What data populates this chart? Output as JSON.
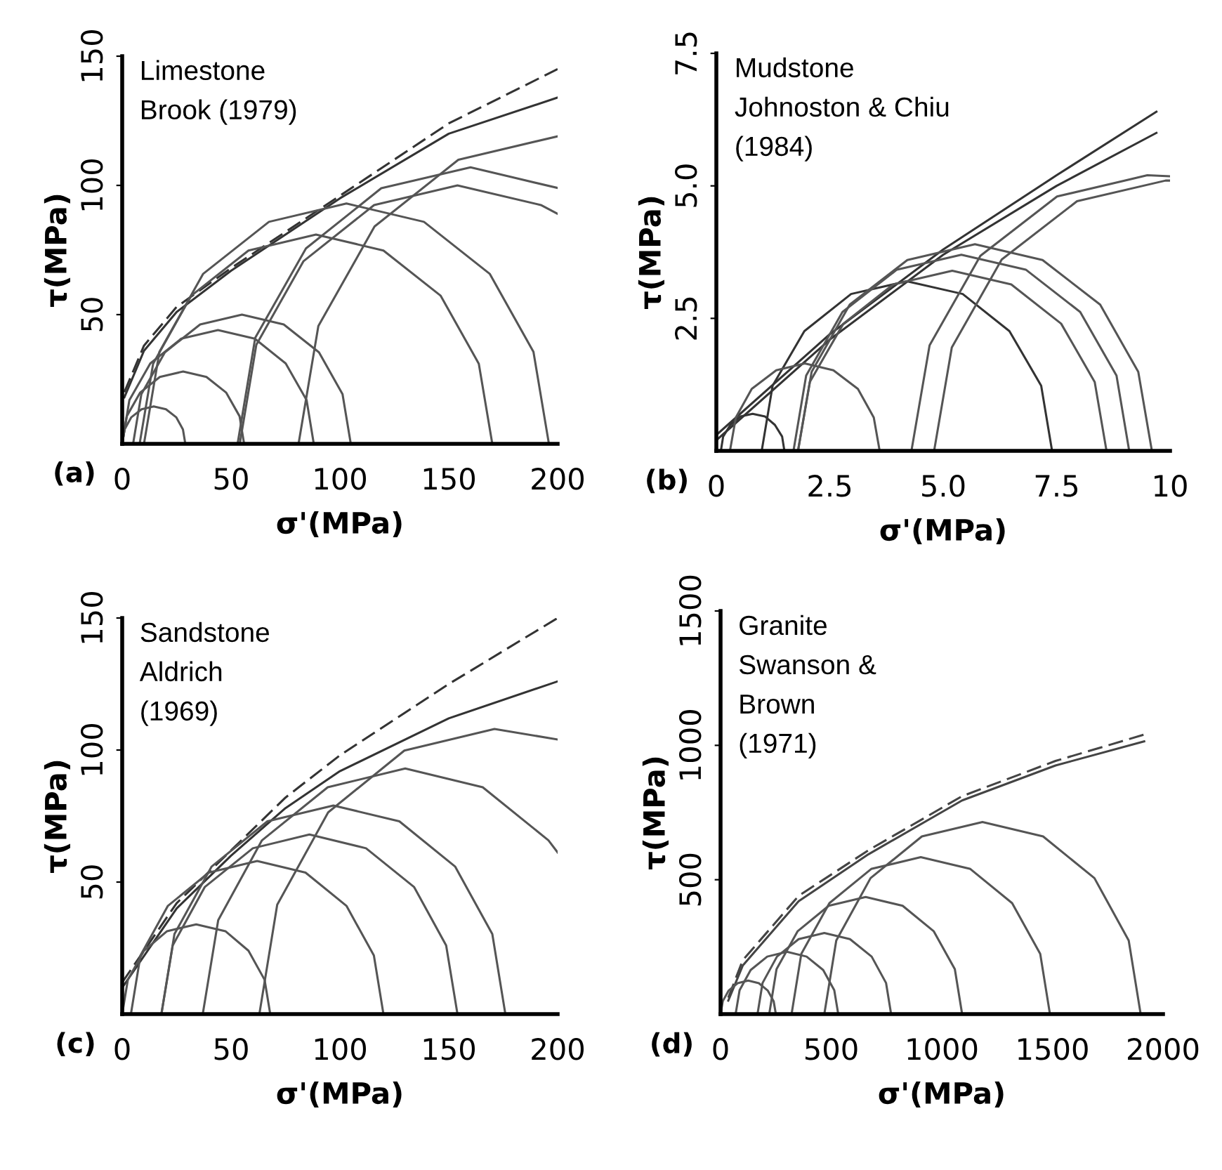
{
  "chart_data": [
    {
      "type": "line",
      "xlabel": "σ'(MPa)",
      "ylabel": "τ(MPa)",
      "annotations": [
        "Limestone\nBrook (1979)",
        "(a)"
      ],
      "xlim": [
        0,
        200
      ],
      "ylim": [
        0,
        150
      ],
      "xticks": [
        0,
        50,
        100,
        150,
        200
      ],
      "yticks": [
        50,
        100,
        150
      ],
      "series": [
        {
          "color": "#333333",
          "line_style": "dashed",
          "x": [
            1,
            10,
            25,
            50,
            100,
            150,
            200
          ],
          "values": [
            20,
            38,
            53,
            68,
            96,
            124,
            145
          ]
        },
        {
          "color": "#333333",
          "line_style": "solid",
          "x": [
            1,
            10,
            25,
            50,
            100,
            150,
            200
          ],
          "values": [
            18,
            36,
            51,
            67,
            95,
            120,
            134
          ]
        },
        {
          "color": "#555555",
          "x": [
            0,
            1.1,
            4.2,
            8.9,
            14.5,
            20.1,
            24.8,
            27.9,
            29
          ],
          "values": [
            0,
            5.6,
            10.3,
            13.4,
            14.5,
            13.4,
            10.3,
            5.6,
            0
          ]
        },
        {
          "color": "#555555",
          "x": [
            0,
            2.1,
            8.2,
            17.3,
            28,
            38.7,
            47.8,
            53.9,
            56
          ],
          "values": [
            0,
            10.7,
            19.8,
            25.9,
            28,
            25.9,
            19.8,
            10.7,
            0
          ]
        },
        {
          "color": "#555555",
          "x": [
            0,
            3.3,
            12.9,
            27.1,
            44,
            60.9,
            75.1,
            84.7,
            88
          ],
          "values": [
            0,
            16.9,
            31.1,
            40.7,
            44,
            40.7,
            31.1,
            16.9,
            0
          ]
        },
        {
          "color": "#555555",
          "x": [
            5,
            8.8,
            19.6,
            35.8,
            55,
            74.2,
            90.4,
            101.2,
            105
          ],
          "values": [
            0,
            19.2,
            35.4,
            46.2,
            50,
            46.2,
            35.4,
            19.2,
            0
          ]
        },
        {
          "color": "#555555",
          "x": [
            8,
            14.2,
            31.7,
            58,
            89,
            120,
            146.3,
            163.8,
            170
          ],
          "values": [
            0,
            31,
            57.3,
            74.8,
            81,
            74.8,
            57.3,
            31,
            0
          ]
        },
        {
          "color": "#555555",
          "x": [
            10,
            17.1,
            37.2,
            67.4,
            103,
            138.6,
            168.8,
            188.9,
            196
          ],
          "values": [
            0,
            35.6,
            65.8,
            85.9,
            93,
            85.9,
            65.8,
            35.6,
            0
          ]
        },
        {
          "color": "#555555",
          "x": [
            54,
            61.6,
            83.3,
            115.7,
            154,
            192.3,
            200
          ],
          "values": [
            0,
            38.3,
            70.7,
            92.4,
            100,
            92.4,
            89
          ]
        },
        {
          "color": "#555555",
          "x": [
            53,
            61.1,
            84.4,
            119,
            160,
            200
          ],
          "values": [
            0,
            41,
            75.6,
            98.9,
            107,
            99
          ]
        },
        {
          "color": "#555555",
          "x": [
            81,
            90.1,
            115.9,
            154.4,
            200
          ],
          "values": [
            0,
            45.6,
            84.1,
            109.9,
            119
          ]
        }
      ]
    },
    {
      "type": "line",
      "xlabel": "σ'(MPa)",
      "ylabel": "τ(MPa)",
      "annotations": [
        "Mudstone\nJohnoston & Chiu\n(1984)",
        "(b)"
      ],
      "xlim": [
        0,
        10
      ],
      "ylim": [
        0,
        7.5
      ],
      "xticks": [
        0,
        2.5,
        {
          "value": 5,
          "label": "5.0"
        },
        7.5,
        10
      ],
      "yticks": [
        2.5,
        {
          "value": 5,
          "label": "5.0"
        },
        7.5
      ],
      "series": [
        {
          "color": "#333333",
          "line_style": "solid",
          "x": [
            0,
            2.5,
            5,
            7.5,
            9.7
          ],
          "values": [
            0.3,
            2.2,
            3.8,
            5.2,
            6.4
          ]
        },
        {
          "color": "#333333",
          "line_style": "solid",
          "x": [
            0,
            2.5,
            5,
            7.5,
            9.7
          ],
          "values": [
            0.2,
            2.1,
            3.7,
            5.0,
            6.0
          ]
        },
        {
          "color": "#333333",
          "x": [
            1.0,
            1.24,
            1.94,
            2.97,
            4.2,
            5.43,
            6.46,
            7.16,
            7.4
          ],
          "values": [
            0,
            1.23,
            2.26,
            2.96,
            3.2,
            2.96,
            2.26,
            1.23,
            0
          ]
        },
        {
          "color": "#333333",
          "x": [
            0.1,
            0.15,
            0.31,
            0.53,
            0.8,
            1.07,
            1.29,
            1.45,
            1.5
          ],
          "values": [
            0,
            0.27,
            0.49,
            0.65,
            0.7,
            0.65,
            0.49,
            0.27,
            0
          ]
        },
        {
          "color": "#555555",
          "x": [
            0.3,
            0.43,
            0.78,
            1.32,
            1.95,
            2.58,
            3.12,
            3.47,
            3.6
          ],
          "values": [
            0,
            0.63,
            1.17,
            1.52,
            1.65,
            1.52,
            1.17,
            0.63,
            0
          ]
        },
        {
          "color": "#555555",
          "x": [
            1.8,
            2.1,
            2.94,
            4.21,
            5.7,
            7.19,
            8.46,
            9.3,
            9.6
          ],
          "values": [
            0,
            1.49,
            2.76,
            3.6,
            3.9,
            3.6,
            2.76,
            1.49,
            0
          ]
        },
        {
          "color": "#555555",
          "x": [
            1.7,
            1.98,
            2.78,
            3.98,
            5.4,
            6.82,
            8.02,
            8.82,
            9.1
          ],
          "values": [
            0,
            1.42,
            2.62,
            3.42,
            3.7,
            3.42,
            2.62,
            1.42,
            0
          ]
        },
        {
          "color": "#555555",
          "x": [
            1.8,
            2.06,
            2.8,
            3.9,
            5.2,
            6.5,
            7.6,
            8.34,
            8.6
          ],
          "values": [
            0,
            1.3,
            2.4,
            3.14,
            3.4,
            3.14,
            2.4,
            1.3,
            0
          ]
        },
        {
          "color": "#555555",
          "x": [
            4.8,
            5.19,
            6.29,
            7.95,
            9.9,
            10
          ],
          "values": [
            0,
            1.95,
            3.61,
            4.71,
            5.1,
            5.1
          ]
        },
        {
          "color": "#555555",
          "x": [
            4.3,
            4.7,
            5.82,
            7.51,
            9.5,
            10
          ],
          "values": [
            0,
            1.99,
            3.68,
            4.8,
            5.2,
            5.18
          ]
        }
      ]
    },
    {
      "type": "line",
      "xlabel": "σ'(MPa)",
      "ylabel": "τ(MPa)",
      "annotations": [
        "Sandstone\nAldrich\n(1969)",
        "(c)"
      ],
      "xlim": [
        0,
        200
      ],
      "ylim": [
        0,
        150
      ],
      "xticks": [
        0,
        50,
        100,
        150,
        200
      ],
      "yticks": [
        50,
        100,
        150
      ],
      "series": [
        {
          "color": "#333333",
          "line_style": "dashed",
          "x": [
            0,
            25,
            50,
            75,
            100,
            150,
            200
          ],
          "values": [
            12,
            42,
            62,
            82,
            98,
            125,
            150
          ]
        },
        {
          "color": "#333333",
          "line_style": "solid",
          "x": [
            0,
            25,
            50,
            75,
            100,
            150,
            200
          ],
          "values": [
            10,
            40,
            60,
            78,
            92,
            112,
            126
          ]
        },
        {
          "color": "#555555",
          "x": [
            0,
            2.6,
            10,
            20.6,
            34,
            47.4,
            58,
            65.4,
            68
          ],
          "values": [
            0,
            13,
            24,
            31.4,
            34,
            31.4,
            24,
            13,
            0
          ]
        },
        {
          "color": "#555555",
          "x": [
            4,
            8.4,
            21,
            39.8,
            62,
            84.2,
            103,
            115.6,
            120
          ],
          "values": [
            0,
            22.2,
            41,
            53.6,
            58,
            53.6,
            41,
            22.2,
            0
          ]
        },
        {
          "color": "#555555",
          "x": [
            18,
            23.2,
            37.9,
            60,
            86,
            112,
            134.1,
            148.8,
            154
          ],
          "values": [
            0,
            26,
            48.1,
            62.8,
            68,
            62.8,
            48.1,
            26,
            0
          ]
        },
        {
          "color": "#555555",
          "x": [
            18,
            24,
            41.1,
            66.7,
            97,
            127.3,
            152.9,
            170,
            176
          ],
          "values": [
            0,
            30.3,
            55.9,
            73,
            79,
            73,
            55.9,
            30.3,
            0
          ]
        },
        {
          "color": "#555555",
          "x": [
            37,
            44.1,
            64.2,
            94.4,
            130,
            165.6,
            195.8,
            200
          ],
          "values": [
            0,
            35.6,
            65.8,
            85.9,
            93,
            85.9,
            65.8,
            61.2
          ]
        },
        {
          "color": "#555555",
          "x": [
            63,
            71.2,
            94.6,
            129.6,
            171,
            200
          ],
          "values": [
            0,
            41.4,
            76.4,
            99.8,
            108,
            104
          ]
        }
      ]
    },
    {
      "type": "line",
      "xlabel": "σ'(MPa)",
      "ylabel": "τ(MPa)",
      "annotations": [
        "Granite\nSwanson &\nBrown\n(1971)",
        "(d)"
      ],
      "xlim": [
        0,
        2000
      ],
      "ylim": [
        0,
        1500
      ],
      "xticks": [
        0,
        500,
        1000,
        1500,
        2000
      ],
      "yticks": [
        500,
        1000,
        1500
      ],
      "series": [
        {
          "color": "#444444",
          "line_style": "dashed",
          "x": [
            35,
            100,
            353,
            669,
            1092,
            1514,
            1915
          ],
          "values": [
            61,
            200,
            440,
            610,
            811,
            942,
            1040
          ]
        },
        {
          "color": "#444444",
          "line_style": "solid",
          "x": [
            35,
            100,
            353,
            669,
            1092,
            1514,
            1915
          ],
          "values": [
            50,
            180,
            420,
            595,
            795,
            925,
            1015
          ]
        },
        {
          "color": "#555555",
          "x": [
            0,
            10,
            37,
            77,
            125,
            173,
            213,
            240,
            250
          ],
          "values": [
            0,
            48,
            88,
            115,
            125,
            115,
            88,
            48,
            0
          ]
        },
        {
          "color": "#555555",
          "x": [
            68,
            86,
            136,
            211,
            300,
            389,
            464,
            514,
            532
          ],
          "values": [
            0,
            89,
            164,
            214,
            232,
            214,
            164,
            89,
            0
          ]
        },
        {
          "color": "#555555",
          "x": [
            167,
            190,
            255,
            353,
            469,
            585,
            683,
            748,
            771
          ],
          "values": [
            0,
            116,
            214,
            279,
            302,
            279,
            214,
            116,
            0
          ]
        },
        {
          "color": "#555555",
          "x": [
            220,
            253,
            348,
            489,
            656,
            823,
            964,
            1059,
            1092
          ],
          "values": [
            0,
            167,
            308,
            403,
            436,
            403,
            308,
            167,
            0
          ]
        },
        {
          "color": "#555555",
          "x": [
            321,
            365,
            492,
            681,
            905,
            1129,
            1318,
            1445,
            1489
          ],
          "values": [
            0,
            224,
            413,
            540,
            584,
            540,
            413,
            224,
            0
          ]
        },
        {
          "color": "#555555",
          "x": [
            469,
            523,
            678,
            910,
            1184,
            1458,
            1690,
            1845,
            1899
          ],
          "values": [
            0,
            274,
            506,
            661,
            715,
            661,
            506,
            274,
            0
          ]
        }
      ]
    }
  ]
}
